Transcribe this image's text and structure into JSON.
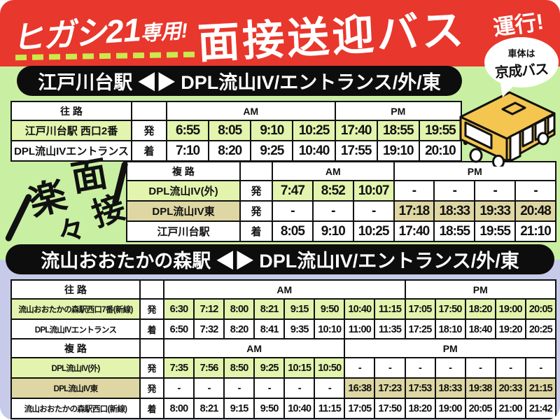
{
  "poster": {
    "colors": {
      "banner_red": "#e8372c",
      "section1_bg": "#c9f0a2",
      "section2_bg": "#c7cbe9",
      "row_highlight_green": "#e2f4ad",
      "row_highlight_tan": "#ded6a3",
      "bar_black": "#0d0d0d",
      "bus_yellow": "#f4c54f"
    },
    "banner": {
      "badge_main": "ヒガシ21",
      "badge_sub": "専用!",
      "title": "面接送迎バス",
      "suffix": "運行!"
    },
    "bubble": {
      "top": "車体は",
      "bottom": "京成バス"
    },
    "section1_heading": "江戸川台駅 ◀▶ DPL流山IV/エントランス/外/東",
    "section2_heading": "流山おおたかの森駅 ◀▶ DPL流山IV/エントランス/外/東",
    "decoration": {
      "text": "楽々面接",
      "chars": [
        "楽",
        "々",
        "面",
        "接"
      ]
    },
    "icons": {
      "bus": "bus-illustration"
    }
  },
  "tables": [
    {
      "id": "t1",
      "dir_label": "往 路",
      "am_label": "AM",
      "pm_label": "PM",
      "am_span": 4,
      "pm_span": 3,
      "rows": [
        {
          "label": "江戸川台駅 西口2番",
          "mark": "発",
          "style": "green",
          "times": [
            "6:55",
            "8:05",
            "9:10",
            "10:25",
            "17:40",
            "18:55",
            "19:55"
          ]
        },
        {
          "label": "DPL流山IVエントランス",
          "mark": "着",
          "style": "white",
          "times": [
            "7:10",
            "8:20",
            "9:25",
            "10:40",
            "17:55",
            "19:10",
            "20:10"
          ]
        }
      ]
    },
    {
      "id": "t2",
      "dir_label": "複 路",
      "am_label": "AM",
      "pm_label": "PM",
      "am_span": 3,
      "pm_span": 4,
      "rows": [
        {
          "label": "DPL流山IV(外)",
          "mark": "発",
          "style": "green",
          "times": [
            "7:47",
            "8:52",
            "10:07",
            "-",
            "-",
            "-",
            "-"
          ]
        },
        {
          "label": "DPL流山IV東",
          "mark": "発",
          "style": "tan",
          "times": [
            "-",
            "-",
            "-",
            "17:18",
            "18:33",
            "19:33",
            "20:48"
          ]
        },
        {
          "label": "江戸川台駅",
          "mark": "着",
          "style": "white",
          "times": [
            "8:05",
            "9:10",
            "10:25",
            "17:40",
            "18:55",
            "19:55",
            "21:10"
          ]
        }
      ]
    },
    {
      "id": "t3",
      "dir_label": "往 路",
      "am_label": "AM",
      "pm_label": "PM",
      "am_span": 8,
      "pm_span": 5,
      "rows": [
        {
          "label": "流山おおたかの森駅西口7番(新線)",
          "mark": "発",
          "style": "green",
          "times": [
            "6:30",
            "7:12",
            "8:00",
            "8:21",
            "9:15",
            "9:50",
            "10:40",
            "11:15",
            "17:05",
            "17:50",
            "18:20",
            "19:00",
            "20:05"
          ]
        },
        {
          "label": "DPL流山IVエントランス",
          "mark": "着",
          "style": "white",
          "times": [
            "6:50",
            "7:32",
            "8:20",
            "8:41",
            "9:35",
            "10:10",
            "11:00",
            "11:35",
            "17:25",
            "18:10",
            "18:40",
            "19:20",
            "20:25"
          ]
        }
      ]
    },
    {
      "id": "t4",
      "dir_label": "複 路",
      "am_label": "AM",
      "pm_label": "PM",
      "am_span": 6,
      "pm_span": 7,
      "rows": [
        {
          "label": "DPL流山IV(外)",
          "mark": "発",
          "style": "green",
          "times": [
            "7:35",
            "7:56",
            "8:50",
            "9:25",
            "10:15",
            "10:50",
            "-",
            "-",
            "-",
            "-",
            "-",
            "-",
            "-"
          ]
        },
        {
          "label": "DPL流山IV東",
          "mark": "発",
          "style": "tan",
          "times": [
            "-",
            "-",
            "-",
            "-",
            "-",
            "-",
            "16:38",
            "17:23",
            "17:53",
            "18:33",
            "19:38",
            "20:33",
            "21:15"
          ]
        },
        {
          "label": "流山おおたかの森駅西口(新線)",
          "mark": "着",
          "style": "white",
          "times": [
            "8:00",
            "8:21",
            "9:15",
            "9:50",
            "10:40",
            "11:15",
            "17:05",
            "17:50",
            "18:20",
            "19:00",
            "20:05",
            "21:00",
            "21:42"
          ]
        }
      ]
    }
  ]
}
